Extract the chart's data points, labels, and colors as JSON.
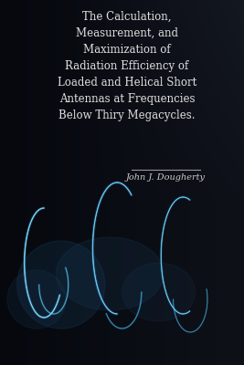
{
  "title_lines": [
    "The Calculation,",
    "Measurement, and",
    "Maximization of",
    "Radiation Efficiency of",
    "Loaded and Helical Short",
    "Antennas at Frequencies",
    "Below Thiry Megacycles."
  ],
  "author": "John J. Dougherty",
  "title_color": "#e0e0e0",
  "author_color": "#cccccc",
  "title_fontsize": 8.5,
  "author_fontsize": 7.0,
  "separator_color": "#999999",
  "figsize": [
    2.67,
    4.0
  ],
  "dpi": 100,
  "bg_dark": "#0e1118",
  "bg_mid": "#111520",
  "bg_left_dark": "#080c12"
}
